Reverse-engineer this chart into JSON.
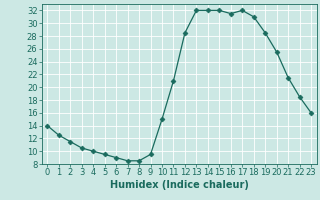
{
  "x": [
    0,
    1,
    2,
    3,
    4,
    5,
    6,
    7,
    8,
    9,
    10,
    11,
    12,
    13,
    14,
    15,
    16,
    17,
    18,
    19,
    20,
    21,
    22,
    23
  ],
  "y": [
    14,
    12.5,
    11.5,
    10.5,
    10,
    9.5,
    9,
    8.5,
    8.5,
    9.5,
    15,
    21,
    28.5,
    32,
    32,
    32,
    31.5,
    32,
    31,
    28.5,
    25.5,
    21.5,
    18.5,
    16
  ],
  "line_color": "#1a6b5e",
  "marker": "D",
  "marker_size": 2.5,
  "bg_color": "#cce8e4",
  "grid_color": "#ffffff",
  "xlabel": "Humidex (Indice chaleur)",
  "xlabel_fontsize": 7,
  "tick_fontsize": 6,
  "ylim": [
    8,
    33
  ],
  "xlim": [
    -0.5,
    23.5
  ],
  "yticks": [
    8,
    10,
    12,
    14,
    16,
    18,
    20,
    22,
    24,
    26,
    28,
    30,
    32
  ],
  "xticks": [
    0,
    1,
    2,
    3,
    4,
    5,
    6,
    7,
    8,
    9,
    10,
    11,
    12,
    13,
    14,
    15,
    16,
    17,
    18,
    19,
    20,
    21,
    22,
    23
  ]
}
